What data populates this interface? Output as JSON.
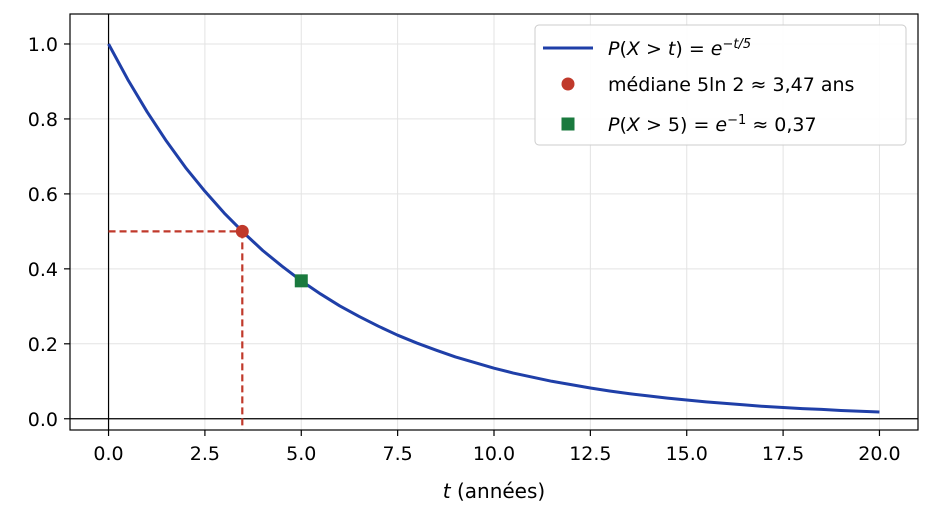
{
  "chart_data": {
    "type": "line",
    "title": "",
    "xlabel": {
      "var": "t",
      "rest": " (années)"
    },
    "ylabel": "",
    "xlim": [
      -1.0,
      21.0
    ],
    "ylim": [
      -0.03,
      1.08
    ],
    "xticks": [
      0.0,
      2.5,
      5.0,
      7.5,
      10.0,
      12.5,
      15.0,
      17.5,
      20.0
    ],
    "xtick_labels": [
      "0.0",
      "2.5",
      "5.0",
      "7.5",
      "10.0",
      "12.5",
      "15.0",
      "17.5",
      "20.0"
    ],
    "yticks": [
      0.0,
      0.2,
      0.4,
      0.6,
      0.8,
      1.0
    ],
    "ytick_labels": [
      "0.0",
      "0.2",
      "0.4",
      "0.6",
      "0.8",
      "1.0"
    ],
    "grid": true,
    "legend_position": "top-right",
    "series": [
      {
        "name": "P(X > t) = e^{-t/5}",
        "kind": "curve",
        "color": "#1f3fa8",
        "x": [
          0,
          0.5,
          1,
          1.5,
          2,
          2.5,
          3,
          3.5,
          4,
          4.5,
          5,
          5.5,
          6,
          6.5,
          7,
          7.5,
          8,
          8.5,
          9,
          9.5,
          10,
          10.5,
          11,
          11.5,
          12,
          12.5,
          13,
          13.5,
          14,
          14.5,
          15,
          15.5,
          16,
          16.5,
          17,
          17.5,
          18,
          18.5,
          19,
          19.5,
          20
        ],
        "y": [
          1.0,
          0.905,
          0.819,
          0.741,
          0.67,
          0.607,
          0.549,
          0.497,
          0.449,
          0.407,
          0.368,
          0.333,
          0.301,
          0.273,
          0.247,
          0.223,
          0.202,
          0.183,
          0.165,
          0.15,
          0.135,
          0.122,
          0.111,
          0.1,
          0.091,
          0.082,
          0.074,
          0.067,
          0.061,
          0.055,
          0.05,
          0.045,
          0.041,
          0.037,
          0.033,
          0.03,
          0.027,
          0.025,
          0.022,
          0.02,
          0.018
        ]
      },
      {
        "name": "médiane 5 ln 2 ≈ 3,47 ans",
        "kind": "point",
        "marker": "circle",
        "color": "#c0392b",
        "x": [
          3.47
        ],
        "y": [
          0.5
        ]
      },
      {
        "name": "P(X > 5) = e^{-1} ≈ 0,37",
        "kind": "point",
        "marker": "square",
        "color": "#1a7a3e",
        "x": [
          5.0
        ],
        "y": [
          0.368
        ]
      }
    ],
    "guides": [
      {
        "from": [
          0,
          0.5
        ],
        "to": [
          3.47,
          0.5
        ],
        "color": "#c0392b",
        "style": "dashed"
      },
      {
        "from": [
          3.47,
          0.5
        ],
        "to": [
          3.47,
          -0.03
        ],
        "color": "#c0392b",
        "style": "dashed"
      }
    ],
    "legend": [
      {
        "marker": "line",
        "color": "#1f3fa8",
        "parts": [
          {
            "t": "P",
            "i": true
          },
          {
            "t": "(",
            "i": false
          },
          {
            "t": "X",
            "i": true
          },
          {
            "t": " > ",
            "i": false
          },
          {
            "t": "t",
            "i": true
          },
          {
            "t": ") = ",
            "i": false
          },
          {
            "t": "e",
            "i": true
          },
          {
            "t": "−t/5",
            "i": true,
            "sup": true
          }
        ]
      },
      {
        "marker": "circle",
        "color": "#c0392b",
        "parts": [
          {
            "t": "médiane 5ln 2 ≈ 3,47 ans",
            "i": false
          }
        ]
      },
      {
        "marker": "square",
        "color": "#1a7a3e",
        "parts": [
          {
            "t": "P",
            "i": true
          },
          {
            "t": "(",
            "i": false
          },
          {
            "t": "X",
            "i": true
          },
          {
            "t": " > 5) = ",
            "i": false
          },
          {
            "t": "e",
            "i": true
          },
          {
            "t": "−1",
            "i": false,
            "sup": true
          },
          {
            "t": " ≈ 0,37",
            "i": false
          }
        ]
      }
    ]
  }
}
